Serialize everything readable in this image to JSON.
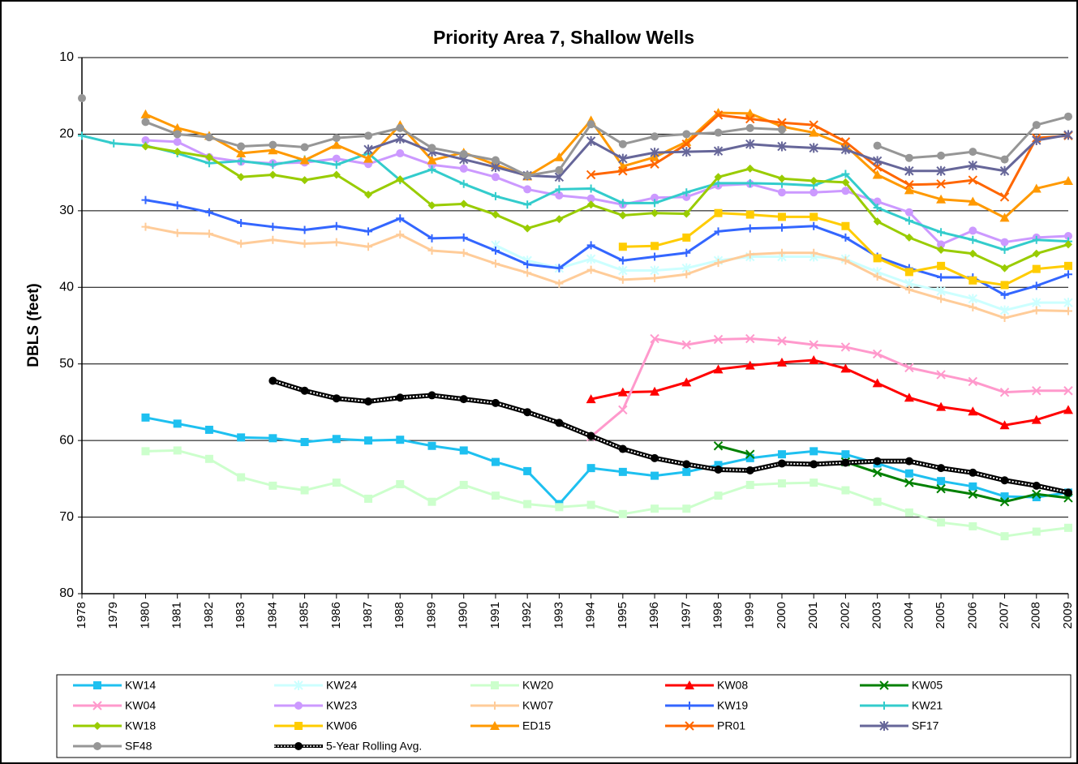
{
  "chart_data": {
    "type": "line",
    "title": "Priority Area 7, Shallow Wells",
    "y_label": "DBLS (feet)",
    "x": [
      1978,
      1979,
      1980,
      1981,
      1982,
      1983,
      1984,
      1985,
      1986,
      1987,
      1988,
      1989,
      1990,
      1991,
      1992,
      1993,
      1994,
      1995,
      1996,
      1997,
      1998,
      1999,
      2000,
      2001,
      2002,
      2003,
      2004,
      2005,
      2006,
      2007,
      2008,
      2009
    ],
    "xlim": [
      1978,
      2009
    ],
    "ylim": [
      10,
      80
    ],
    "y_inverted": true,
    "yticks": [
      10,
      20,
      30,
      40,
      50,
      60,
      70,
      80
    ],
    "grid": true,
    "series": [
      {
        "name": "KW14",
        "color": "#1ec0f0",
        "marker": "square",
        "values": [
          null,
          null,
          57,
          57.8,
          58.6,
          59.6,
          59.7,
          60.2,
          59.8,
          60,
          59.9,
          60.7,
          61.3,
          62.8,
          64,
          68.3,
          63.6,
          64.1,
          64.6,
          64.1,
          63.2,
          62.3,
          61.8,
          61.4,
          61.8,
          63,
          64.3,
          65.3,
          66,
          67.3,
          67.4,
          66.8
        ]
      },
      {
        "name": "KW24",
        "color": "#ccffff",
        "marker": "star",
        "values": [
          null,
          null,
          null,
          null,
          null,
          null,
          null,
          null,
          null,
          null,
          null,
          null,
          null,
          34.5,
          36.5,
          37.5,
          36.3,
          37.8,
          37.8,
          37.5,
          36.5,
          36,
          36,
          36,
          36.3,
          38,
          39.5,
          40.5,
          41.5,
          43,
          42,
          42
        ]
      },
      {
        "name": "KW20",
        "color": "#ccffcc",
        "marker": "square",
        "values": [
          null,
          null,
          61.4,
          61.3,
          62.4,
          64.8,
          65.9,
          66.5,
          65.5,
          67.6,
          65.7,
          68,
          65.8,
          67.2,
          68.3,
          68.7,
          68.4,
          69.6,
          68.9,
          68.9,
          67.2,
          65.8,
          65.6,
          65.5,
          66.5,
          68,
          69.4,
          70.7,
          71.2,
          72.5,
          71.9,
          71.4
        ]
      },
      {
        "name": "KW08",
        "color": "#ff0000",
        "marker": "triangle",
        "values": [
          null,
          null,
          null,
          null,
          null,
          null,
          null,
          null,
          null,
          null,
          null,
          null,
          null,
          null,
          null,
          null,
          54.6,
          53.7,
          53.6,
          52.4,
          50.7,
          50.2,
          49.8,
          49.5,
          50.6,
          52.5,
          54.4,
          55.6,
          56.2,
          58,
          57.3,
          56
        ]
      },
      {
        "name": "KW05",
        "color": "#008000",
        "marker": "x",
        "values": [
          null,
          null,
          null,
          null,
          null,
          null,
          null,
          null,
          null,
          null,
          null,
          null,
          null,
          null,
          null,
          null,
          null,
          null,
          null,
          null,
          60.7,
          61.8,
          null,
          null,
          62.8,
          64.2,
          65.5,
          66.3,
          67,
          68,
          67,
          67.5
        ]
      },
      {
        "name": "KW04",
        "color": "#ff99cc",
        "marker": "x",
        "values": [
          null,
          null,
          null,
          null,
          null,
          null,
          null,
          null,
          null,
          null,
          null,
          null,
          null,
          null,
          null,
          null,
          59.5,
          56,
          46.7,
          47.5,
          46.8,
          46.7,
          47,
          47.5,
          47.8,
          48.7,
          50.5,
          51.4,
          52.3,
          53.7,
          53.5,
          53.5
        ]
      },
      {
        "name": "KW23",
        "color": "#cc99ff",
        "marker": "circle",
        "values": [
          null,
          null,
          20.8,
          21,
          23,
          23.6,
          23.8,
          23.7,
          23.2,
          23.9,
          22.5,
          24,
          24.5,
          25.6,
          27.2,
          28,
          28.4,
          29.2,
          28.3,
          28.2,
          26.7,
          26.5,
          27.6,
          27.6,
          27.4,
          28.8,
          30.2,
          34.4,
          32.6,
          34.1,
          33.5,
          33.3
        ]
      },
      {
        "name": "KW07",
        "color": "#ffcc99",
        "marker": "plus",
        "values": [
          null,
          null,
          32.1,
          32.9,
          33,
          34.3,
          33.8,
          34.3,
          34.1,
          34.7,
          33.1,
          35.2,
          35.5,
          36.9,
          38.1,
          39.5,
          37.7,
          39,
          38.8,
          38.3,
          36.8,
          35.7,
          35.5,
          35.5,
          36.5,
          38.6,
          40.3,
          41.5,
          42.6,
          44,
          43,
          43.1
        ]
      },
      {
        "name": "KW19",
        "color": "#3366ff",
        "marker": "plus",
        "values": [
          null,
          null,
          28.6,
          29.3,
          30.2,
          31.6,
          32.1,
          32.5,
          32,
          32.7,
          31,
          33.6,
          33.5,
          35.2,
          37,
          37.5,
          34.5,
          36.5,
          36,
          35.5,
          32.7,
          32.3,
          32.2,
          32,
          33.5,
          36,
          37.5,
          38.7,
          38.7,
          41,
          39.8,
          38.3
        ]
      },
      {
        "name": "KW21",
        "color": "#33cccc",
        "marker": "plus",
        "values": [
          20.2,
          21.2,
          21.5,
          22.5,
          23.8,
          23.5,
          24,
          23.3,
          24,
          22.5,
          26,
          24.6,
          26.5,
          28.1,
          29.2,
          27.2,
          27.1,
          29,
          29,
          27.6,
          26.4,
          26.4,
          26.5,
          26.7,
          25.2,
          29.6,
          31.3,
          32.8,
          33.8,
          35.1,
          33.8,
          34
        ]
      },
      {
        "name": "KW18",
        "color": "#99cc00",
        "marker": "diamond",
        "values": [
          null,
          null,
          21.6,
          22.3,
          23,
          25.6,
          25.3,
          26,
          25.3,
          27.9,
          25.9,
          29.3,
          29.1,
          30.5,
          32.3,
          31.1,
          29.2,
          30.6,
          30.3,
          30.4,
          25.6,
          24.5,
          25.8,
          26.1,
          26.3,
          31.4,
          33.5,
          35.1,
          35.6,
          37.5,
          35.6,
          34.4
        ]
      },
      {
        "name": "KW06",
        "color": "#ffcc00",
        "marker": "square",
        "values": [
          null,
          null,
          null,
          null,
          null,
          null,
          null,
          null,
          null,
          null,
          null,
          null,
          null,
          null,
          null,
          null,
          null,
          34.7,
          34.6,
          33.5,
          30.3,
          30.5,
          30.8,
          30.8,
          32,
          36.2,
          38,
          37.2,
          39.1,
          39.7,
          37.6,
          37.2
        ]
      },
      {
        "name": "ED15",
        "color": "#ff9900",
        "marker": "triangle",
        "values": [
          null,
          null,
          17.4,
          19.2,
          20.2,
          22.5,
          22.1,
          23.4,
          21.4,
          23.2,
          18.8,
          23.4,
          22.4,
          24,
          25.5,
          23,
          18.2,
          24.2,
          23,
          21,
          17.2,
          17.3,
          19,
          19.8,
          21.5,
          25.3,
          27.3,
          28.5,
          28.8,
          30.9,
          27.1,
          26.1
        ]
      },
      {
        "name": "PR01",
        "color": "#ff6600",
        "marker": "x",
        "values": [
          null,
          null,
          null,
          null,
          null,
          null,
          null,
          null,
          null,
          null,
          null,
          null,
          null,
          null,
          null,
          null,
          25.3,
          24.8,
          23.9,
          21.3,
          17.5,
          18,
          18.5,
          18.8,
          21,
          24.3,
          26.6,
          26.5,
          26,
          28.2,
          20.5,
          20.2
        ]
      },
      {
        "name": "SF17",
        "color": "#666699",
        "marker": "star",
        "values": [
          null,
          null,
          null,
          null,
          null,
          null,
          null,
          null,
          null,
          22,
          20.6,
          22.3,
          23.3,
          24.3,
          25.4,
          25.6,
          20.9,
          23.2,
          22.4,
          22.3,
          22.2,
          21.3,
          21.6,
          21.8,
          22,
          23.5,
          24.8,
          24.8,
          24.1,
          24.8,
          20.8,
          20.1
        ]
      },
      {
        "name": "SF48",
        "color": "#969696",
        "marker": "circle",
        "values": [
          15.3,
          null,
          18.4,
          20,
          20.4,
          21.6,
          21.4,
          21.7,
          20.5,
          20.2,
          19.2,
          21.8,
          22.6,
          23.4,
          25.4,
          24.7,
          18.7,
          21.3,
          20.3,
          20,
          19.8,
          19.2,
          19.4,
          null,
          null,
          21.5,
          23.1,
          22.8,
          22.3,
          23.3,
          18.8,
          17.7
        ]
      },
      {
        "name": "5-Year Rolling Avg.",
        "color": "#000000",
        "marker": "circle",
        "pattern": "hatched",
        "values": [
          null,
          null,
          null,
          null,
          null,
          null,
          52.2,
          53.5,
          54.5,
          54.9,
          54.4,
          54.1,
          54.6,
          55.1,
          56.3,
          57.7,
          59.4,
          61.1,
          62.3,
          63.1,
          63.8,
          63.9,
          63,
          63.1,
          62.9,
          62.7,
          62.7,
          63.6,
          64.2,
          65.2,
          65.9,
          66.8
        ]
      }
    ]
  }
}
